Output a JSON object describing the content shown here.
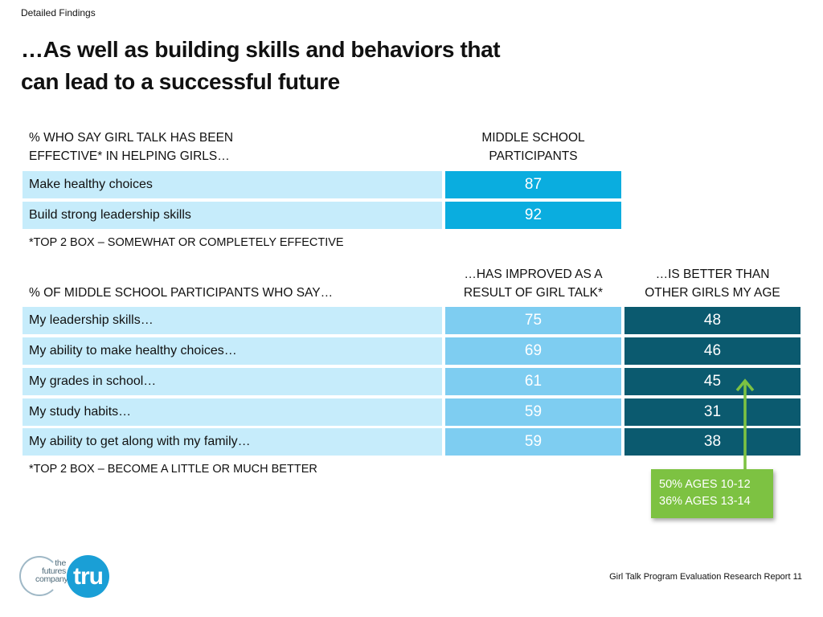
{
  "header": {
    "section": "Detailed Findings",
    "title_line1": "…As well as building skills and behaviors that",
    "title_line2": "can lead to a successful future"
  },
  "table1": {
    "question_line1": "% WHO SAY GIRL TALK HAS BEEN",
    "question_line2": "EFFECTIVE* IN HELPING GIRLS…",
    "column_line1": "MIDDLE SCHOOL",
    "column_line2": "PARTICIPANTS",
    "rows": [
      {
        "label": "Make healthy choices",
        "value": "87"
      },
      {
        "label": "Build strong leadership skills",
        "value": "92"
      }
    ],
    "footnote": "*TOP 2 BOX – SOMEWHAT OR COMPLETELY EFFECTIVE"
  },
  "table2": {
    "question": "% OF MIDDLE SCHOOL PARTICIPANTS WHO SAY…",
    "col1_line1": "…HAS IMPROVED AS A",
    "col1_line2": "RESULT OF GIRL TALK*",
    "col2_line1": "…IS BETTER THAN",
    "col2_line2": "OTHER GIRLS MY AGE",
    "rows": [
      {
        "label": "My leadership skills…",
        "improved": "75",
        "better": "48"
      },
      {
        "label": "My ability to make healthy choices…",
        "improved": "69",
        "better": "46"
      },
      {
        "label": "My grades in school…",
        "improved": "61",
        "better": "45"
      },
      {
        "label": "My study habits…",
        "improved": "59",
        "better": "31"
      },
      {
        "label": "My ability to get along with my family…",
        "improved": "59",
        "better": "38"
      }
    ],
    "footnote": "*TOP 2 BOX – BECOME A LITTLE OR MUCH BETTER"
  },
  "callout": {
    "line1": "50% AGES 10-12",
    "line2": "36% AGES 13-14"
  },
  "colors": {
    "label_bg": "#c6ecfb",
    "table1_value": "#0aaddf",
    "improved_value": "#7ecdf1",
    "better_value": "#0b5a6f",
    "callout": "#7dc242"
  },
  "footer": {
    "logo_tfc_line1": "the",
    "logo_tfc_line2": "futures",
    "logo_tfc_line3": "company",
    "logo_tru": "tru",
    "report": "Girl Talk Program Evaluation Research Report 11"
  }
}
